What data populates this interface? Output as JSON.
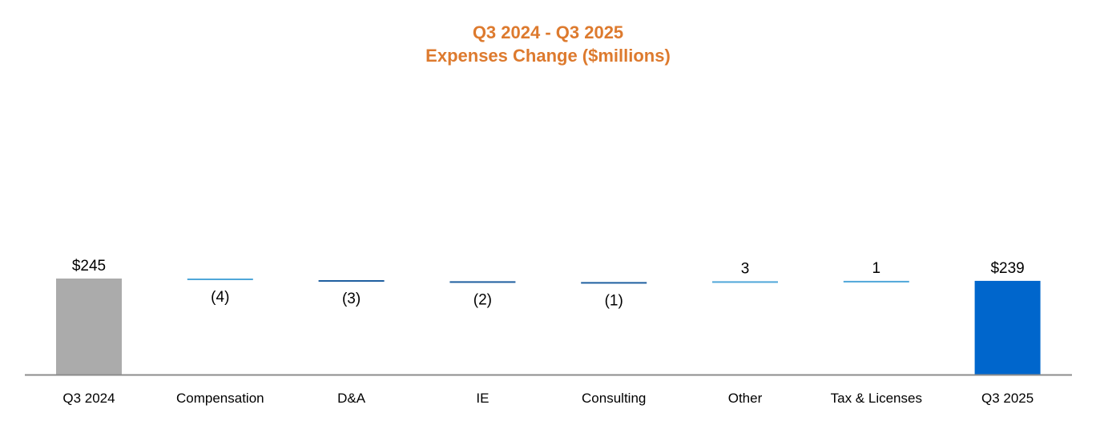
{
  "chart_data": {
    "type": "bar",
    "subtype": "waterfall",
    "title": "Q3 2024 - Q3 2025",
    "subtitle": "Expenses Change ($millions)",
    "categories": [
      "Q3 2024",
      "Compensation",
      "D&A",
      "IE",
      "Consulting",
      "Other",
      "Tax & Licenses",
      "Q3 2025"
    ],
    "values": [
      245,
      -4,
      -3,
      -2,
      -1,
      3,
      1,
      239
    ],
    "kinds": [
      "total",
      "delta",
      "delta",
      "delta",
      "delta",
      "delta",
      "delta",
      "total"
    ],
    "value_labels": [
      "$245",
      "(4)",
      "(3)",
      "(2)",
      "(1)",
      "3",
      "1",
      "$239"
    ],
    "xlabel": "",
    "ylabel": "",
    "ylim": [
      0,
      320
    ],
    "grid": false,
    "legend": "none"
  },
  "colors": {
    "title": "#DD7A2E",
    "start_total": "#ABABAB",
    "end_total": "#0066CC",
    "increase": "#4FA7D9",
    "decrease_light": "#4FA7D9",
    "decrease_dark": "#1F5FA0",
    "axis": "#8C8C8C"
  },
  "bar_colors": [
    "#ABABAB",
    "#4FA7D9",
    "#1F5FA0",
    "#1F5FA0",
    "#1F5FA0",
    "#4FA7D9",
    "#4FA7D9",
    "#0066CC"
  ]
}
